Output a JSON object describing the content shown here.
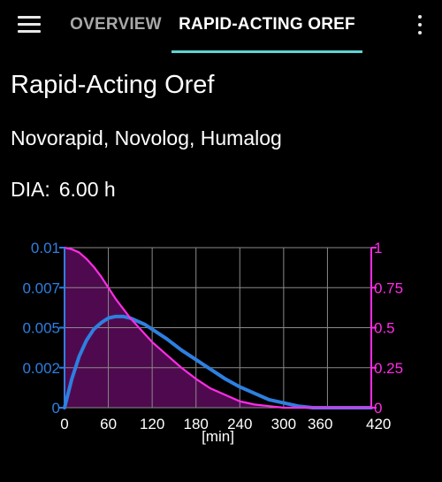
{
  "toolbar": {
    "tabs": [
      {
        "label": "OVERVIEW"
      },
      {
        "label": "RAPID-ACTING OREF"
      }
    ],
    "active_tab": 1,
    "menu_icon": "hamburger-menu-icon",
    "overflow_icon": "kebab-menu-icon",
    "accent_color": "#5ed3d3"
  },
  "profile": {
    "name": "Rapid-Acting Oref",
    "brands": "Novorapid, Novolog, Humalog",
    "dia_label": "DIA:",
    "dia_value": "6.00 h"
  },
  "chart_data": {
    "type": "line",
    "xlabel": "[min]",
    "x_ticks": [
      "0",
      "60",
      "120",
      "180",
      "240",
      "300",
      "360",
      "420"
    ],
    "xlim": [
      0,
      420
    ],
    "left_axis": {
      "ticks": [
        "0",
        "0.002",
        "0.005",
        "0.007",
        "0.01"
      ],
      "ylim": [
        0,
        0.01
      ],
      "color": "#2e7fe0"
    },
    "right_axis": {
      "ticks": [
        "0",
        "0.25",
        "0.5",
        "0.75",
        "1"
      ],
      "ylim": [
        0,
        1
      ],
      "color": "#ff2ce6"
    },
    "grid": true,
    "series": [
      {
        "axis": "left",
        "color": "#2e7fe0",
        "x": [
          0,
          10,
          20,
          30,
          40,
          50,
          60,
          70,
          80,
          90,
          100,
          110,
          120,
          140,
          160,
          180,
          200,
          220,
          240,
          260,
          280,
          300,
          320,
          340,
          360,
          380,
          400,
          420
        ],
        "y": [
          0,
          0.0018,
          0.0032,
          0.0042,
          0.0049,
          0.0053,
          0.0056,
          0.0057,
          0.0057,
          0.0056,
          0.0054,
          0.0052,
          0.0049,
          0.0043,
          0.0036,
          0.003,
          0.0024,
          0.0018,
          0.0013,
          0.0009,
          0.0005,
          0.0003,
          0.0001,
          0,
          0,
          0,
          0,
          0
        ]
      },
      {
        "axis": "right",
        "color": "#ff2ce6",
        "fill": "#4f0a4f",
        "x": [
          0,
          10,
          20,
          30,
          40,
          50,
          60,
          70,
          80,
          90,
          100,
          110,
          120,
          140,
          160,
          180,
          200,
          220,
          240,
          260,
          280,
          300,
          320,
          340,
          360,
          380,
          400,
          420
        ],
        "y": [
          1,
          0.99,
          0.97,
          0.93,
          0.88,
          0.82,
          0.75,
          0.68,
          0.62,
          0.56,
          0.51,
          0.46,
          0.41,
          0.33,
          0.25,
          0.18,
          0.12,
          0.08,
          0.04,
          0.02,
          0.01,
          0,
          0,
          0,
          0,
          0,
          0,
          0
        ]
      }
    ]
  }
}
